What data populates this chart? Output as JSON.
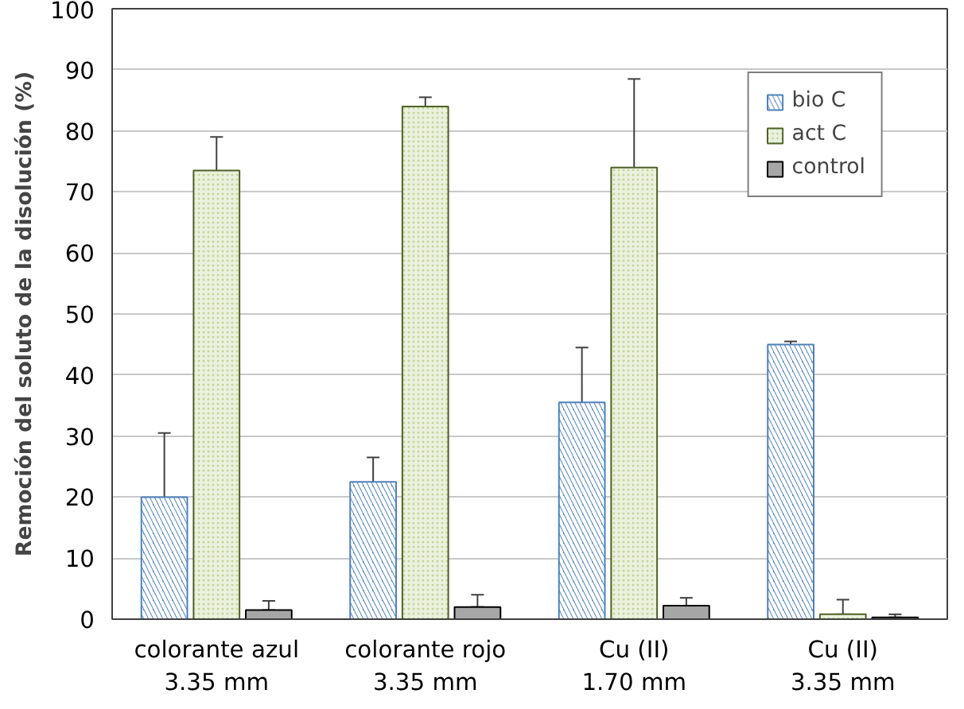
{
  "chart_data": {
    "type": "bar",
    "ylabel": "Remoción del soluto de la disolución (%)",
    "categories": [
      "colorante azul\n3.35 mm",
      "colorante rojo\n3.35 mm",
      "Cu (II)\n1.70 mm",
      "Cu (II)\n3.35 mm"
    ],
    "series": [
      {
        "name": "bio C",
        "color": "#4f81bd",
        "values": [
          20,
          22.5,
          35.5,
          45
        ],
        "errors": [
          [
            9,
            30.5
          ],
          [
            18.5,
            26.5
          ],
          [
            26.5,
            44.5
          ],
          [
            44.5,
            45.5
          ]
        ]
      },
      {
        "name": "act C",
        "color": "#ebf1de",
        "values": [
          73.5,
          84,
          74,
          0.8
        ],
        "errors": [
          [
            68,
            79
          ],
          [
            82.5,
            85.5
          ],
          [
            60,
            88.5
          ],
          [
            0.8,
            3.2
          ]
        ]
      },
      {
        "name": "control",
        "color": "#a6a6a6",
        "values": [
          1.5,
          2,
          2.2,
          0.3
        ],
        "errors": [
          [
            1.5,
            3
          ],
          [
            2,
            4
          ],
          [
            2.2,
            3.5
          ],
          [
            0.3,
            0.8
          ]
        ]
      }
    ],
    "ylim": [
      0,
      100
    ],
    "yticks": [
      0,
      10,
      20,
      30,
      40,
      50,
      60,
      70,
      80,
      90,
      100
    ],
    "grid": "y",
    "legend": "top right"
  }
}
